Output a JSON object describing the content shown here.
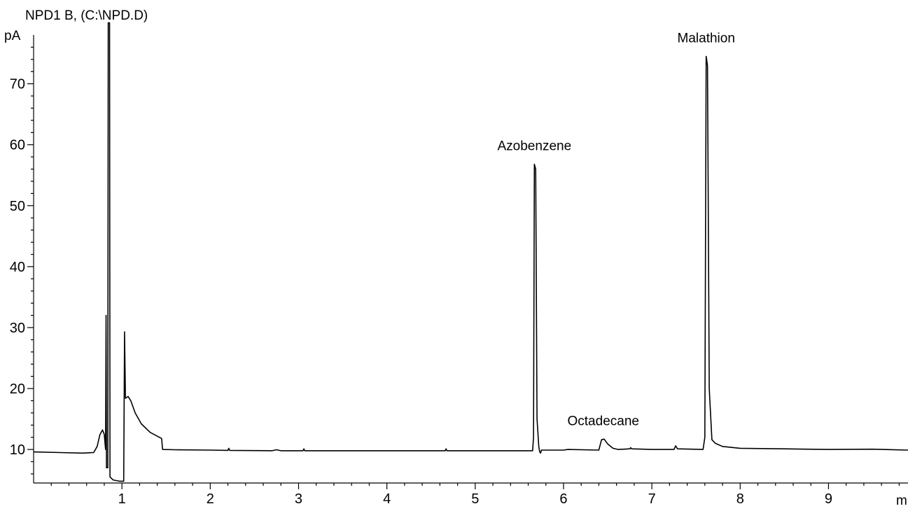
{
  "chart_data": {
    "type": "line",
    "signal_label": "NPD1 B,  (C:\\NPD.D)",
    "ylabel": "pA",
    "xlabel": "m",
    "xlim": [
      0,
      9.9
    ],
    "ylim": [
      4.5,
      78
    ],
    "y_ticks": [
      10,
      20,
      30,
      40,
      50,
      60,
      70
    ],
    "x_ticks": [
      1,
      2,
      3,
      4,
      5,
      6,
      7,
      8,
      9
    ],
    "grid": false,
    "legend": "none",
    "series": [
      {
        "points": [
          [
            0.0,
            9.6
          ],
          [
            0.3,
            9.5
          ],
          [
            0.55,
            9.4
          ],
          [
            0.68,
            9.5
          ],
          [
            0.72,
            10.5
          ],
          [
            0.75,
            12.4
          ],
          [
            0.78,
            13.2
          ],
          [
            0.8,
            12.5
          ],
          [
            0.815,
            10.0
          ],
          [
            0.82,
            32.0
          ],
          [
            0.825,
            7.0
          ],
          [
            0.84,
            7.0
          ],
          [
            0.845,
            80.0
          ],
          [
            0.86,
            80.0
          ],
          [
            0.865,
            5.5
          ],
          [
            0.9,
            5.0
          ],
          [
            0.97,
            4.8
          ],
          [
            1.02,
            4.8
          ],
          [
            1.03,
            29.3
          ],
          [
            1.04,
            18.4
          ],
          [
            1.07,
            18.7
          ],
          [
            1.1,
            18.0
          ],
          [
            1.15,
            16.0
          ],
          [
            1.22,
            14.2
          ],
          [
            1.32,
            12.8
          ],
          [
            1.45,
            11.8
          ],
          [
            1.46,
            10.0
          ],
          [
            1.6,
            9.95
          ],
          [
            2.0,
            9.9
          ],
          [
            2.2,
            9.85
          ],
          [
            2.21,
            10.2
          ],
          [
            2.22,
            9.85
          ],
          [
            2.7,
            9.8
          ],
          [
            2.75,
            9.95
          ],
          [
            2.8,
            9.8
          ],
          [
            3.05,
            9.8
          ],
          [
            3.06,
            10.1
          ],
          [
            3.07,
            9.8
          ],
          [
            3.5,
            9.8
          ],
          [
            4.0,
            9.8
          ],
          [
            4.66,
            9.8
          ],
          [
            4.67,
            10.1
          ],
          [
            4.68,
            9.8
          ],
          [
            5.0,
            9.8
          ],
          [
            5.65,
            9.8
          ],
          [
            5.66,
            12.0
          ],
          [
            5.67,
            56.8
          ],
          [
            5.685,
            56.0
          ],
          [
            5.7,
            15.0
          ],
          [
            5.72,
            10.5
          ],
          [
            5.73,
            9.6
          ],
          [
            5.74,
            9.4
          ],
          [
            5.75,
            9.9
          ],
          [
            6.0,
            9.9
          ],
          [
            6.05,
            10.0
          ],
          [
            6.4,
            9.9
          ],
          [
            6.43,
            11.6
          ],
          [
            6.46,
            11.7
          ],
          [
            6.5,
            10.9
          ],
          [
            6.56,
            10.2
          ],
          [
            6.62,
            10.0
          ],
          [
            6.75,
            10.1
          ],
          [
            6.76,
            10.3
          ],
          [
            6.77,
            10.1
          ],
          [
            7.0,
            10.0
          ],
          [
            7.25,
            10.0
          ],
          [
            7.27,
            10.6
          ],
          [
            7.29,
            10.1
          ],
          [
            7.58,
            10.0
          ],
          [
            7.6,
            12.0
          ],
          [
            7.615,
            74.5
          ],
          [
            7.63,
            73.0
          ],
          [
            7.65,
            20.0
          ],
          [
            7.68,
            11.6
          ],
          [
            7.72,
            11.0
          ],
          [
            7.8,
            10.5
          ],
          [
            8.0,
            10.2
          ],
          [
            8.5,
            10.1
          ],
          [
            9.0,
            10.0
          ],
          [
            9.5,
            10.05
          ],
          [
            9.9,
            9.9
          ]
        ]
      }
    ],
    "annotations": [
      {
        "text": "Azobenzene",
        "x": 5.67,
        "y": 56.8
      },
      {
        "text": "Octadecane",
        "x": 6.45,
        "y": 11.7
      },
      {
        "text": "Malathion",
        "x": 7.615,
        "y": 74.5
      }
    ]
  }
}
